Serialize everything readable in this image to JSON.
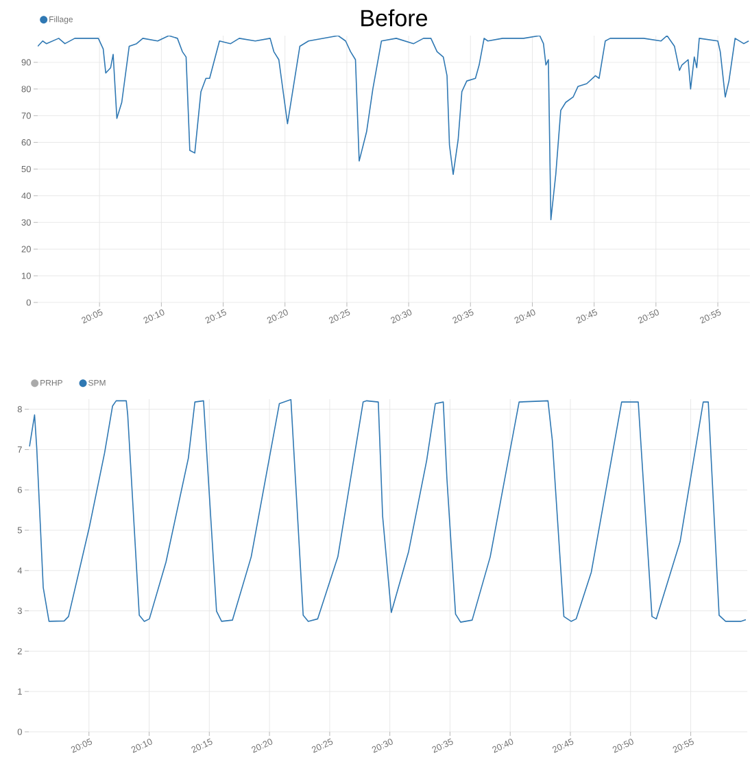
{
  "chart_data": [
    {
      "type": "line",
      "title": "Before",
      "legend": "top left",
      "grid": true,
      "line_style": "solid",
      "xlim": [
        20.0,
        20.96
      ],
      "ylim": [
        0,
        100
      ],
      "xticks": [
        {
          "value": 20.0833,
          "label": "20:05"
        },
        {
          "value": 20.1667,
          "label": "20:10"
        },
        {
          "value": 20.25,
          "label": "20:15"
        },
        {
          "value": 20.3333,
          "label": "20:20"
        },
        {
          "value": 20.4167,
          "label": "20:25"
        },
        {
          "value": 20.5,
          "label": "20:30"
        },
        {
          "value": 20.5833,
          "label": "20:35"
        },
        {
          "value": 20.6667,
          "label": "20:40"
        },
        {
          "value": 20.75,
          "label": "20:45"
        },
        {
          "value": 20.8333,
          "label": "20:50"
        },
        {
          "value": 20.9167,
          "label": "20:55"
        }
      ],
      "yticks": [
        0,
        10,
        20,
        30,
        40,
        50,
        60,
        70,
        80,
        90
      ],
      "series": [
        {
          "name": "Fillage",
          "color": "#2f78b3",
          "x": [
            20.0,
            20.0067,
            20.0117,
            20.0283,
            20.0367,
            20.05,
            20.0767,
            20.0817,
            20.0883,
            20.0917,
            20.0983,
            20.1017,
            20.1067,
            20.1133,
            20.1233,
            20.1333,
            20.1417,
            20.1617,
            20.1767,
            20.1883,
            20.195,
            20.2,
            20.205,
            20.2117,
            20.22,
            20.2267,
            20.2317,
            20.245,
            20.26,
            20.2717,
            20.2933,
            20.3133,
            20.3183,
            20.325,
            20.3367,
            20.3533,
            20.365,
            20.405,
            20.415,
            20.4217,
            20.4283,
            20.4333,
            20.4433,
            20.4517,
            20.4633,
            20.4833,
            20.5067,
            20.52,
            20.53,
            20.5383,
            20.5467,
            20.5517,
            20.555,
            20.56,
            20.5667,
            20.5717,
            20.5783,
            20.59,
            20.595,
            20.6017,
            20.6067,
            20.6267,
            20.655,
            20.6767,
            20.6817,
            20.685,
            20.6883,
            20.6917,
            20.6983,
            20.705,
            20.7117,
            20.7217,
            20.7283,
            20.74,
            20.7517,
            20.7567,
            20.765,
            20.7717,
            20.7967,
            20.8167,
            20.84,
            20.8483,
            20.8583,
            20.865,
            20.8683,
            20.8767,
            20.88,
            20.885,
            20.8883,
            20.8917,
            20.9167,
            20.92,
            20.9267,
            20.9317,
            20.94,
            20.9517,
            20.9583
          ],
          "values": [
            96,
            98,
            97,
            99,
            97,
            99,
            99,
            99,
            95,
            86,
            88,
            93,
            69,
            75,
            96,
            97,
            99,
            98,
            100,
            99,
            94,
            92,
            57,
            56,
            79,
            84,
            84,
            98,
            97,
            99,
            98,
            99,
            94,
            91,
            67,
            96,
            98,
            100,
            98,
            94,
            91,
            53,
            64,
            80,
            98,
            99,
            97,
            99,
            99,
            94,
            92,
            85,
            59,
            48,
            61,
            79,
            83,
            84,
            89,
            99,
            98,
            99,
            99,
            100,
            97,
            89,
            91,
            31,
            48,
            72,
            75,
            77,
            81,
            82,
            85,
            84,
            98,
            99,
            99,
            99,
            98,
            100,
            96,
            87,
            89,
            91,
            80,
            92,
            88,
            99,
            98,
            94,
            77,
            83,
            99,
            97,
            98
          ]
        }
      ]
    },
    {
      "type": "line",
      "legend": "top left",
      "grid": true,
      "line_style": "solid",
      "xlim": [
        20.0,
        20.995
      ],
      "ylim": [
        0,
        8.25
      ],
      "xticks": [
        {
          "value": 20.0833,
          "label": "20:05"
        },
        {
          "value": 20.1667,
          "label": "20:10"
        },
        {
          "value": 20.25,
          "label": "20:15"
        },
        {
          "value": 20.3333,
          "label": "20:20"
        },
        {
          "value": 20.4167,
          "label": "20:25"
        },
        {
          "value": 20.5,
          "label": "20:30"
        },
        {
          "value": 20.5833,
          "label": "20:35"
        },
        {
          "value": 20.6667,
          "label": "20:40"
        },
        {
          "value": 20.75,
          "label": "20:45"
        },
        {
          "value": 20.8333,
          "label": "20:50"
        },
        {
          "value": 20.9167,
          "label": "20:55"
        }
      ],
      "yticks": [
        0,
        1,
        2,
        3,
        4,
        5,
        6,
        7,
        8
      ],
      "series": [
        {
          "name": "PRHP",
          "color": "#aaaaaa"
        },
        {
          "name": "SPM",
          "color": "#2f78b3",
          "x": [
            20.001,
            20.008,
            20.011,
            20.02,
            20.028,
            20.049,
            20.055,
            20.084,
            20.105,
            20.116,
            20.121,
            20.135,
            20.137,
            20.153,
            20.16,
            20.167,
            20.19,
            20.221,
            20.23,
            20.242,
            20.26,
            20.267,
            20.282,
            20.308,
            20.347,
            20.363,
            20.38,
            20.387,
            20.4,
            20.428,
            20.463,
            20.468,
            20.484,
            20.49,
            20.502,
            20.526,
            20.551,
            20.563,
            20.574,
            20.579,
            20.591,
            20.598,
            20.614,
            20.639,
            20.679,
            20.719,
            20.725,
            20.741,
            20.751,
            20.758,
            20.779,
            20.821,
            20.844,
            20.863,
            20.869,
            20.902,
            20.934,
            20.941,
            20.956,
            20.965,
            20.986,
            20.993
          ],
          "values": [
            7.08,
            7.86,
            7.04,
            3.58,
            2.74,
            2.75,
            2.86,
            5.09,
            6.92,
            8.08,
            8.21,
            8.21,
            7.86,
            2.89,
            2.74,
            2.8,
            4.21,
            6.79,
            8.18,
            8.21,
            2.99,
            2.74,
            2.77,
            4.34,
            8.14,
            8.24,
            2.89,
            2.74,
            2.8,
            4.34,
            8.18,
            8.21,
            8.18,
            5.35,
            2.96,
            4.47,
            6.73,
            8.14,
            8.18,
            6.29,
            2.92,
            2.72,
            2.77,
            4.34,
            8.18,
            8.21,
            7.23,
            2.86,
            2.74,
            2.8,
            3.96,
            8.18,
            8.18,
            2.86,
            2.8,
            4.72,
            8.18,
            8.18,
            2.89,
            2.74,
            2.74,
            2.78
          ]
        }
      ]
    }
  ]
}
